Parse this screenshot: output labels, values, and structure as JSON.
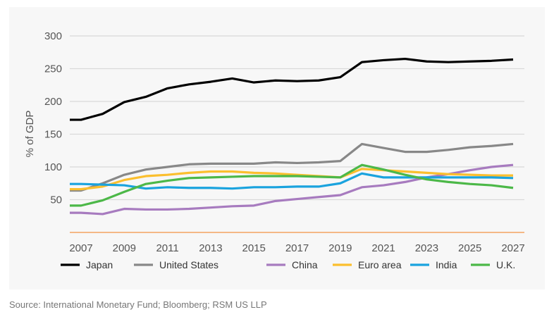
{
  "chart_data": {
    "type": "line",
    "title": "",
    "xlabel": "",
    "ylabel": "% of GDP",
    "ylim": [
      0,
      300
    ],
    "yticks": [
      "50",
      "100",
      "150",
      "200",
      "250",
      "300"
    ],
    "xticks": [
      "2007",
      "2009",
      "2011",
      "2013",
      "2015",
      "2017",
      "2019",
      "2021",
      "2023",
      "2025",
      "2027"
    ],
    "grid": true,
    "legend_position": "bottom",
    "x": [
      2007,
      2008,
      2009,
      2010,
      2011,
      2012,
      2013,
      2014,
      2015,
      2016,
      2017,
      2018,
      2019,
      2020,
      2021,
      2022,
      2023,
      2024,
      2025,
      2026,
      2027
    ],
    "series": [
      {
        "name": "Japan",
        "color": "#000000",
        "values": [
          172,
          181,
          199,
          207,
          220,
          226,
          230,
          235,
          229,
          232,
          231,
          232,
          237,
          260,
          263,
          265,
          261,
          260,
          261,
          262,
          264
        ]
      },
      {
        "name": "United States",
        "color": "#888888",
        "values": [
          64,
          75,
          88,
          96,
          100,
          104,
          105,
          105,
          105,
          107,
          106,
          107,
          109,
          135,
          129,
          123,
          123,
          126,
          130,
          132,
          135
        ]
      },
      {
        "name": "China",
        "color": "#a77bbf",
        "values": [
          30,
          28,
          36,
          35,
          35,
          36,
          38,
          40,
          41,
          48,
          51,
          54,
          57,
          69,
          72,
          77,
          84,
          89,
          95,
          100,
          103
        ]
      },
      {
        "name": "Euro area",
        "color": "#fbbf2e",
        "values": [
          66,
          70,
          80,
          86,
          88,
          91,
          93,
          93,
          91,
          90,
          88,
          86,
          84,
          97,
          95,
          93,
          91,
          89,
          88,
          87,
          87
        ]
      },
      {
        "name": "India",
        "color": "#1aa3de",
        "values": [
          74,
          73,
          72,
          67,
          69,
          68,
          68,
          67,
          69,
          69,
          70,
          70,
          75,
          90,
          84,
          84,
          84,
          84,
          84,
          84,
          83
        ]
      },
      {
        "name": "U.K.",
        "color": "#4cb848",
        "values": [
          41,
          49,
          62,
          74,
          79,
          83,
          84,
          85,
          86,
          86,
          86,
          85,
          84,
          103,
          96,
          88,
          81,
          77,
          74,
          72,
          68
        ]
      }
    ],
    "baseline_color": "#f4a460"
  },
  "source": "Source: International Monetary Fund; Bloomberg; RSM US LLP"
}
